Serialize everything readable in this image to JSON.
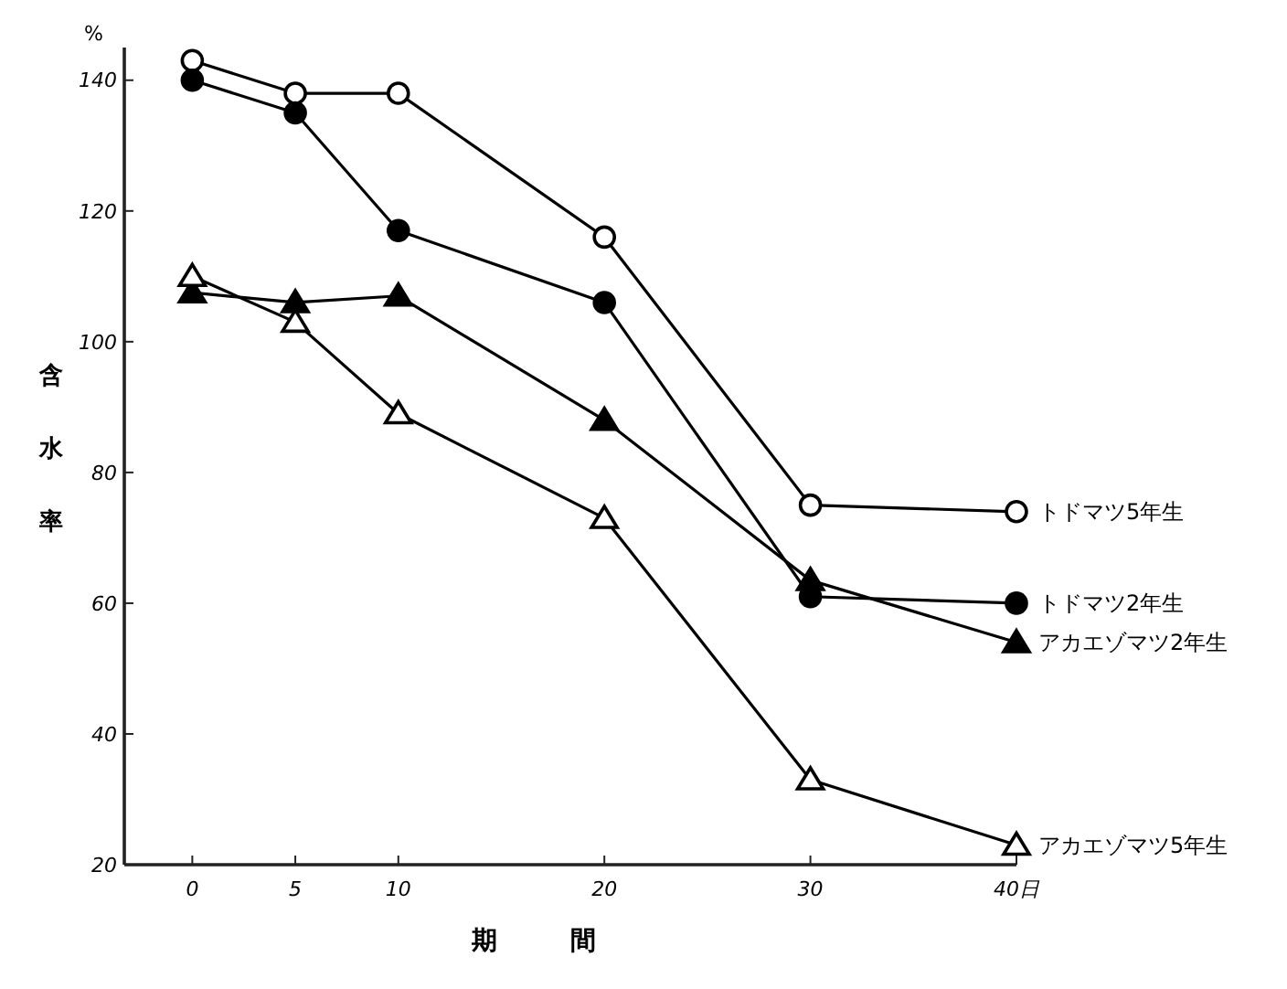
{
  "chart_data": {
    "type": "line",
    "xlabel": "期間",
    "ylabel": "含水率",
    "annotations": [
      "%"
    ],
    "x": [
      0,
      5,
      10,
      20,
      30,
      40
    ],
    "xlim": [
      -3.3,
      40
    ],
    "xticks": [
      0,
      5,
      10,
      20,
      30,
      {
        "value": 40,
        "label": "40日"
      }
    ],
    "ylim": [
      20,
      145
    ],
    "yticks": [
      20,
      40,
      60,
      80,
      100,
      120,
      140
    ],
    "grid": false,
    "legend": false,
    "line_style": "solid",
    "series": [
      {
        "name": "トドマツ5年生",
        "color": "#000000",
        "marker": "circle-open",
        "values": [
          143,
          138,
          138,
          116,
          75,
          74
        ]
      },
      {
        "name": "トドマツ2年生",
        "color": "#000000",
        "marker": "circle",
        "values": [
          140,
          135,
          117,
          106,
          61,
          60
        ]
      },
      {
        "name": "アカエゾマツ2年生",
        "color": "#000000",
        "marker": "triangle",
        "values": [
          107.5,
          106,
          107,
          88,
          63.5,
          54
        ]
      },
      {
        "name": "アカエゾマツ5年生",
        "color": "#000000",
        "marker": "triangle-open",
        "values": [
          110,
          103,
          89,
          73,
          33,
          23
        ]
      }
    ]
  }
}
